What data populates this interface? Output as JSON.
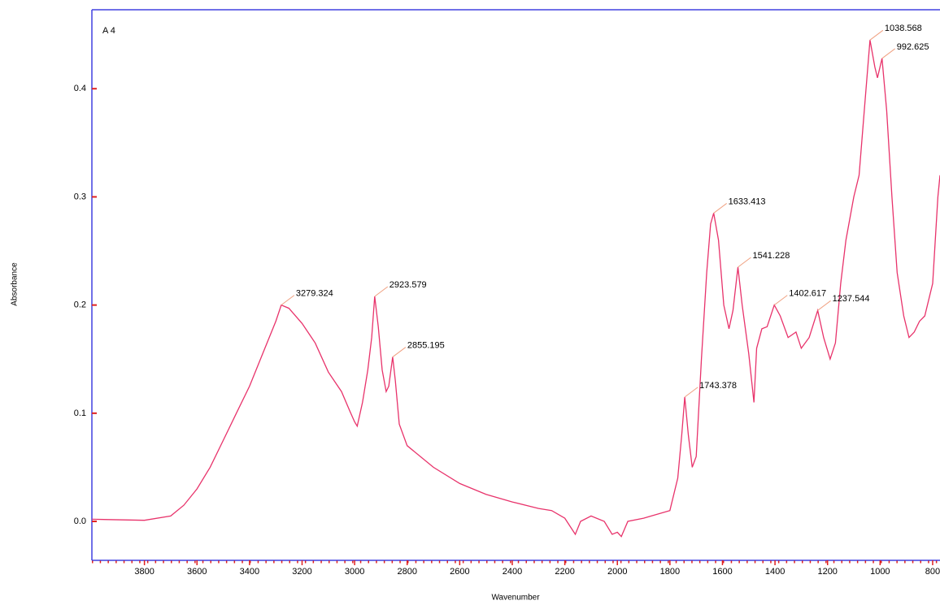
{
  "chart_data": {
    "type": "line",
    "title": "A 4",
    "xlabel": "Wavenumber",
    "ylabel": "Absorbance",
    "color": "#e8336b",
    "x": [
      4000,
      3800,
      3700,
      3650,
      3600,
      3550,
      3500,
      3450,
      3400,
      3350,
      3300,
      3279.324,
      3250,
      3200,
      3150,
      3100,
      3050,
      3020,
      3000,
      2990,
      2970,
      2950,
      2935,
      2923.579,
      2910,
      2895,
      2880,
      2870,
      2855.195,
      2845,
      2830,
      2800,
      2700,
      2600,
      2500,
      2400,
      2300,
      2250,
      2200,
      2160,
      2140,
      2100,
      2050,
      2020,
      2000,
      1985,
      1960,
      1900,
      1800,
      1770,
      1755,
      1743.378,
      1730,
      1715,
      1700,
      1680,
      1660,
      1645,
      1633.413,
      1615,
      1595,
      1575,
      1560,
      1541.228,
      1525,
      1500,
      1480,
      1470,
      1450,
      1430,
      1402.617,
      1380,
      1350,
      1320,
      1300,
      1270,
      1237.544,
      1215,
      1190,
      1170,
      1150,
      1130,
      1100,
      1080,
      1060,
      1038.568,
      1020,
      1010,
      992.625,
      975,
      955,
      935,
      910,
      890,
      870,
      850,
      830,
      800,
      780,
      772
    ],
    "values": [
      0.002,
      0.001,
      0.005,
      0.015,
      0.03,
      0.05,
      0.075,
      0.1,
      0.125,
      0.155,
      0.185,
      0.2,
      0.197,
      0.183,
      0.165,
      0.138,
      0.12,
      0.103,
      0.092,
      0.088,
      0.11,
      0.14,
      0.17,
      0.208,
      0.18,
      0.14,
      0.12,
      0.125,
      0.152,
      0.13,
      0.09,
      0.07,
      0.05,
      0.035,
      0.025,
      0.018,
      0.012,
      0.01,
      0.003,
      -0.012,
      0.0,
      0.005,
      0.0,
      -0.012,
      -0.01,
      -0.014,
      0.0,
      0.003,
      0.01,
      0.04,
      0.08,
      0.115,
      0.08,
      0.05,
      0.06,
      0.15,
      0.23,
      0.275,
      0.285,
      0.26,
      0.2,
      0.178,
      0.195,
      0.235,
      0.2,
      0.155,
      0.11,
      0.16,
      0.178,
      0.18,
      0.2,
      0.19,
      0.17,
      0.175,
      0.16,
      0.17,
      0.195,
      0.17,
      0.15,
      0.165,
      0.22,
      0.26,
      0.3,
      0.32,
      0.38,
      0.445,
      0.42,
      0.41,
      0.428,
      0.38,
      0.3,
      0.23,
      0.19,
      0.17,
      0.175,
      0.185,
      0.19,
      0.22,
      0.3,
      0.32
    ],
    "annotations": [
      {
        "x": 3279.324,
        "y": 0.2
      },
      {
        "x": 2923.579,
        "y": 0.208
      },
      {
        "x": 2855.195,
        "y": 0.152
      },
      {
        "x": 1743.378,
        "y": 0.115
      },
      {
        "x": 1633.413,
        "y": 0.285
      },
      {
        "x": 1541.228,
        "y": 0.235
      },
      {
        "x": 1402.617,
        "y": 0.2
      },
      {
        "x": 1237.544,
        "y": 0.195
      },
      {
        "x": 1038.568,
        "y": 0.445
      },
      {
        "x": 992.625,
        "y": 0.428
      }
    ],
    "xlim": [
      4000,
      772
    ],
    "xticks": [
      3800,
      3600,
      3400,
      3200,
      3000,
      2800,
      2600,
      2400,
      2200,
      2000,
      1800,
      1600,
      1400,
      1200,
      1000,
      800
    ],
    "ylim": [
      -0.036,
      0.473
    ],
    "yticks": [
      {
        "value": 0,
        "label": "0.0"
      },
      0.1,
      0.2,
      0.3,
      0.4
    ]
  }
}
